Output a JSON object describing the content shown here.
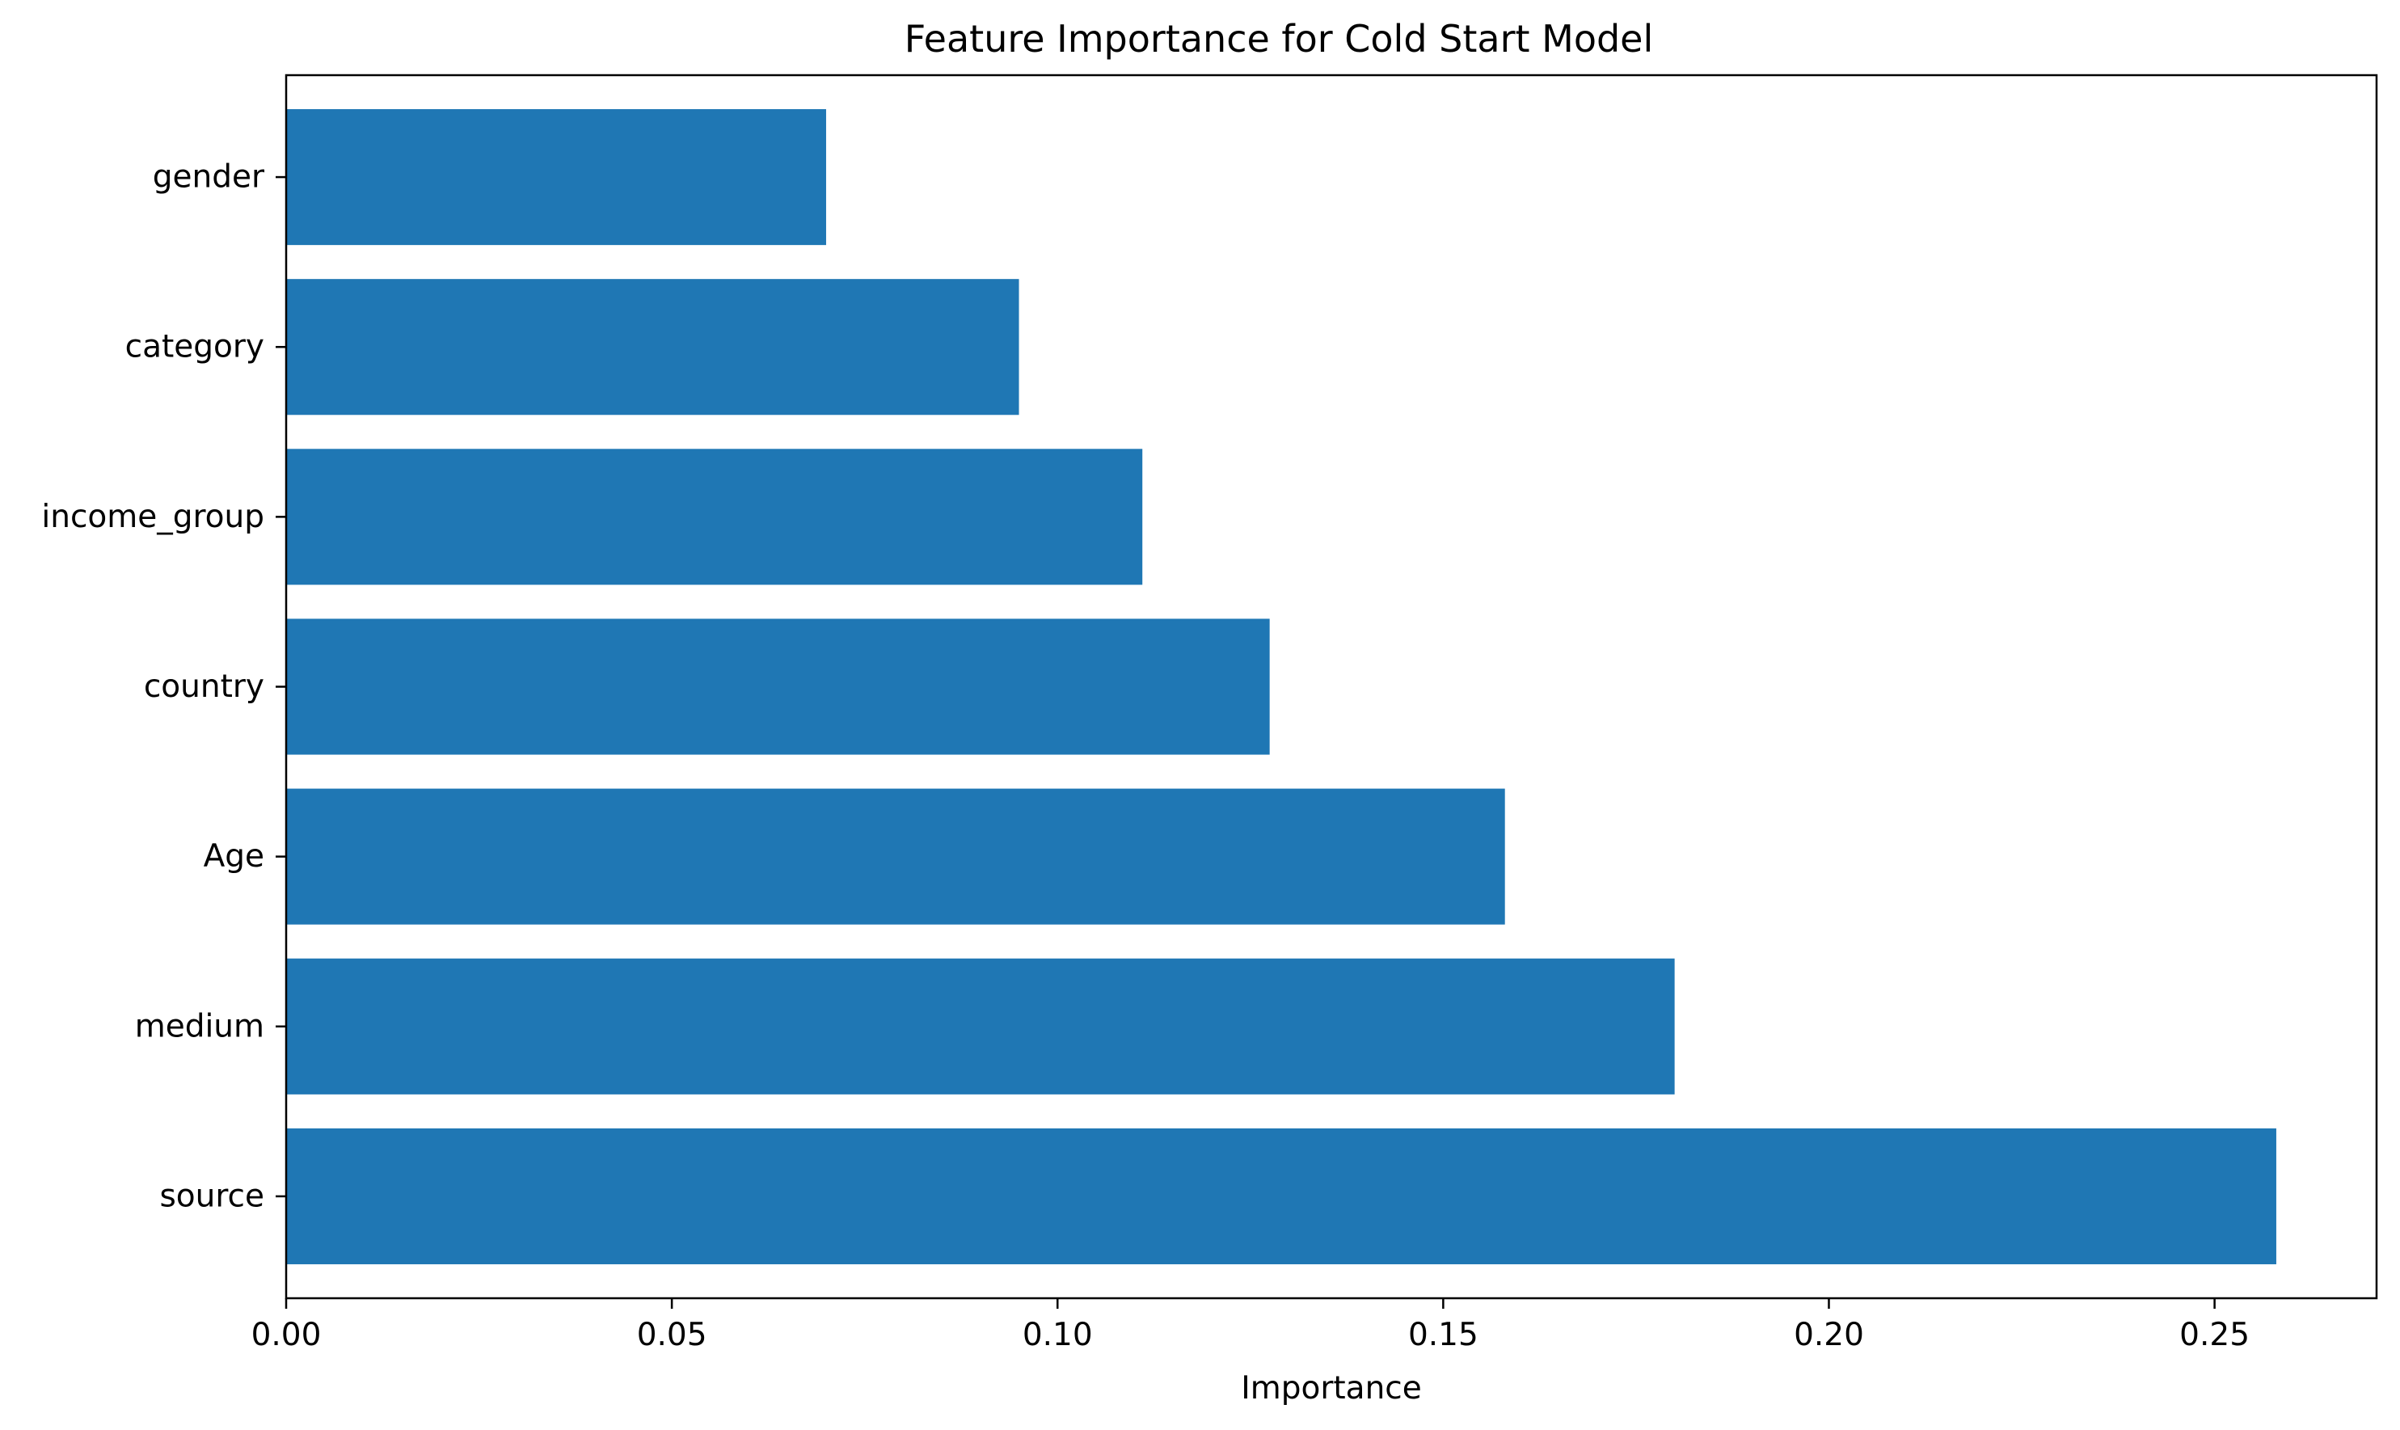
{
  "chart_data": {
    "type": "bar",
    "orientation": "horizontal",
    "title": "Feature Importance for Cold Start Model",
    "xlabel": "Importance",
    "ylabel": "",
    "categories": [
      "source",
      "medium",
      "Age",
      "country",
      "income_group",
      "category",
      "gender"
    ],
    "values": [
      0.258,
      0.18,
      0.158,
      0.1275,
      0.111,
      0.095,
      0.07
    ],
    "xlim": [
      0,
      0.271
    ],
    "xticks": [
      0.0,
      0.05,
      0.1,
      0.15,
      0.2,
      0.25
    ],
    "xtick_labels": [
      "0.00",
      "0.05",
      "0.10",
      "0.15",
      "0.20",
      "0.25"
    ],
    "bar_color": "#1f77b4",
    "grid": false,
    "legend": "none"
  }
}
